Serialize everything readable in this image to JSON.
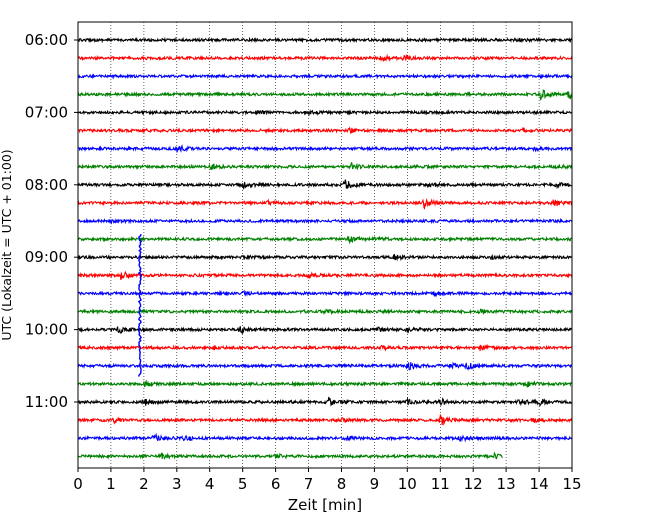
{
  "chart_data": {
    "type": "line",
    "xlabel": "Zeit  [min]",
    "ylabel": "UTC (Lokalzeit = UTC + 01:00)",
    "xlim": [
      0,
      15
    ],
    "x_ticks": [
      "0",
      "1",
      "2",
      "3",
      "4",
      "5",
      "6",
      "7",
      "8",
      "9",
      "10",
      "11",
      "12",
      "13",
      "14",
      "15"
    ],
    "y_tick_labels": [
      "06:00",
      "07:00",
      "08:00",
      "09:00",
      "10:00",
      "11:00"
    ],
    "grid": "vertical-dotted",
    "trace_colors": [
      "#000000",
      "#ff0000",
      "#0000ff",
      "#008000"
    ],
    "traces": [
      {
        "start": "06:00",
        "end_min": 15,
        "color": "#000000",
        "events": [
          {
            "t": 13.3,
            "a": 0.3
          }
        ]
      },
      {
        "start": "06:15",
        "end_min": 15,
        "color": "#ff0000",
        "events": [
          {
            "t": 9.2,
            "a": 0.6
          },
          {
            "t": 9.9,
            "a": 0.4
          }
        ]
      },
      {
        "start": "06:30",
        "end_min": 15,
        "color": "#0000ff",
        "events": [
          {
            "t": 14.0,
            "a": 0.3
          }
        ]
      },
      {
        "start": "06:45",
        "end_min": 15,
        "color": "#008000",
        "events": [
          {
            "t": 14.0,
            "a": 1.3
          },
          {
            "t": 14.9,
            "a": 1.3
          }
        ]
      },
      {
        "start": "07:00",
        "end_min": 15,
        "color": "#000000",
        "events": [
          {
            "t": 5.4,
            "a": 0.4
          },
          {
            "t": 7.0,
            "a": 0.4
          }
        ]
      },
      {
        "start": "07:15",
        "end_min": 15,
        "color": "#ff0000",
        "events": [
          {
            "t": 2.0,
            "a": 0.4
          },
          {
            "t": 8.2,
            "a": 0.6
          },
          {
            "t": 13.5,
            "a": 0.5
          }
        ]
      },
      {
        "start": "07:30",
        "end_min": 15,
        "color": "#0000ff",
        "events": [
          {
            "t": 3.0,
            "a": 0.8
          },
          {
            "t": 13.8,
            "a": 0.5
          }
        ]
      },
      {
        "start": "07:45",
        "end_min": 15,
        "color": "#008000",
        "events": [
          {
            "t": 4.0,
            "a": 0.7
          },
          {
            "t": 8.3,
            "a": 0.6
          },
          {
            "t": 14.5,
            "a": 0.5
          }
        ]
      },
      {
        "start": "08:00",
        "end_min": 15,
        "color": "#000000",
        "events": [
          {
            "t": 5.0,
            "a": 0.7
          },
          {
            "t": 8.1,
            "a": 1.0
          },
          {
            "t": 10.6,
            "a": 0.8
          },
          {
            "t": 14.5,
            "a": 0.5
          }
        ]
      },
      {
        "start": "08:15",
        "end_min": 15,
        "color": "#ff0000",
        "events": [
          {
            "t": 5.7,
            "a": 0.5
          },
          {
            "t": 10.5,
            "a": 1.1
          },
          {
            "t": 14.4,
            "a": 1.0
          }
        ]
      },
      {
        "start": "08:30",
        "end_min": 15,
        "color": "#0000ff",
        "events": [
          {
            "t": 1.0,
            "a": 0.4
          }
        ]
      },
      {
        "start": "08:45",
        "end_min": 15,
        "color": "#008000",
        "events": [
          {
            "t": 8.2,
            "a": 0.7
          },
          {
            "t": 9.0,
            "a": 0.4
          }
        ]
      },
      {
        "start": "09:00",
        "end_min": 15,
        "color": "#000000",
        "events": [
          {
            "t": 5.0,
            "a": 0.4
          },
          {
            "t": 9.6,
            "a": 0.5
          },
          {
            "t": 12.5,
            "a": 0.4
          }
        ]
      },
      {
        "start": "09:15",
        "end_min": 15,
        "color": "#ff0000",
        "events": [
          {
            "t": 1.3,
            "a": 0.9
          },
          {
            "t": 7.0,
            "a": 0.4
          }
        ]
      },
      {
        "start": "09:30",
        "end_min": 15,
        "color": "#0000ff",
        "events": [
          {
            "t": 5.0,
            "a": 0.5
          },
          {
            "t": 10.8,
            "a": 0.4
          }
        ]
      },
      {
        "start": "09:45",
        "end_min": 15,
        "color": "#008000",
        "events": [
          {
            "t": 7.5,
            "a": 0.4
          },
          {
            "t": 12.2,
            "a": 0.4
          }
        ]
      },
      {
        "start": "10:00",
        "end_min": 15,
        "color": "#000000",
        "events": [
          {
            "t": 1.2,
            "a": 0.9
          },
          {
            "t": 4.9,
            "a": 0.7
          },
          {
            "t": 9.1,
            "a": 0.5
          },
          {
            "t": 10.0,
            "a": 0.6
          }
        ]
      },
      {
        "start": "10:15",
        "end_min": 15,
        "color": "#ff0000",
        "events": [
          {
            "t": 4.1,
            "a": 0.6
          },
          {
            "t": 9.2,
            "a": 0.4
          },
          {
            "t": 12.2,
            "a": 0.5
          }
        ]
      },
      {
        "start": "10:30",
        "end_min": 15,
        "color": "#0000ff",
        "events": [
          {
            "t": 10.0,
            "a": 1.0
          },
          {
            "t": 11.3,
            "a": 0.6
          },
          {
            "t": 11.8,
            "a": 0.8
          }
        ]
      },
      {
        "start": "10:45",
        "end_min": 15,
        "color": "#008000",
        "events": [
          {
            "t": 2.0,
            "a": 0.5
          },
          {
            "t": 13.6,
            "a": 0.6
          }
        ]
      },
      {
        "start": "11:00",
        "end_min": 15,
        "color": "#000000",
        "events": [
          {
            "t": 2.0,
            "a": 0.8
          },
          {
            "t": 7.6,
            "a": 0.9
          },
          {
            "t": 10.0,
            "a": 0.5
          },
          {
            "t": 11.0,
            "a": 0.7
          },
          {
            "t": 13.4,
            "a": 0.8
          },
          {
            "t": 14.0,
            "a": 0.7
          }
        ]
      },
      {
        "start": "11:15",
        "end_min": 15,
        "color": "#ff0000",
        "events": [
          {
            "t": 1.1,
            "a": 0.6
          },
          {
            "t": 8.0,
            "a": 0.6
          },
          {
            "t": 11.0,
            "a": 1.2
          },
          {
            "t": 13.8,
            "a": 0.6
          }
        ]
      },
      {
        "start": "11:30",
        "end_min": 15,
        "color": "#0000ff",
        "events": [
          {
            "t": 2.3,
            "a": 0.8
          },
          {
            "t": 3.2,
            "a": 0.7
          },
          {
            "t": 8.1,
            "a": 0.6
          },
          {
            "t": 11.6,
            "a": 0.5
          }
        ]
      },
      {
        "start": "11:45",
        "end_min": 12.9,
        "color": "#008000",
        "events": [
          {
            "t": 2.5,
            "a": 0.6
          },
          {
            "t": 6.0,
            "a": 0.5
          },
          {
            "t": 12.6,
            "a": 0.6
          }
        ]
      }
    ],
    "spike": {
      "minute": 1.88,
      "from_trace": "08:45",
      "to_trace": "10:30",
      "color": "#0000ff"
    }
  }
}
